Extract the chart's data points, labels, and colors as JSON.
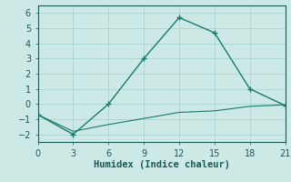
{
  "line1_x": [
    0,
    3,
    6,
    9,
    12,
    15,
    18,
    21
  ],
  "line1_y": [
    -0.7,
    -2.0,
    0.0,
    3.0,
    5.7,
    4.7,
    1.0,
    -0.1
  ],
  "line2_x": [
    0,
    3,
    6,
    9,
    12,
    15,
    18,
    21
  ],
  "line2_y": [
    -0.7,
    -1.8,
    -1.35,
    -0.95,
    -0.55,
    -0.45,
    -0.15,
    -0.05
  ],
  "line_color": "#1a7a6e",
  "bg_color": "#cce9e6",
  "grid_color": "#aad4d0",
  "xlabel": "Humidex (Indice chaleur)",
  "xlim": [
    0,
    21
  ],
  "ylim": [
    -2.5,
    6.5
  ],
  "xticks": [
    0,
    3,
    6,
    9,
    12,
    15,
    18,
    21
  ],
  "yticks": [
    -2,
    -1,
    0,
    1,
    2,
    3,
    4,
    5,
    6
  ],
  "font_color": "#1a5a50",
  "marker": "+",
  "markersize": 4,
  "linewidth": 1.0,
  "linewidth2": 0.8
}
